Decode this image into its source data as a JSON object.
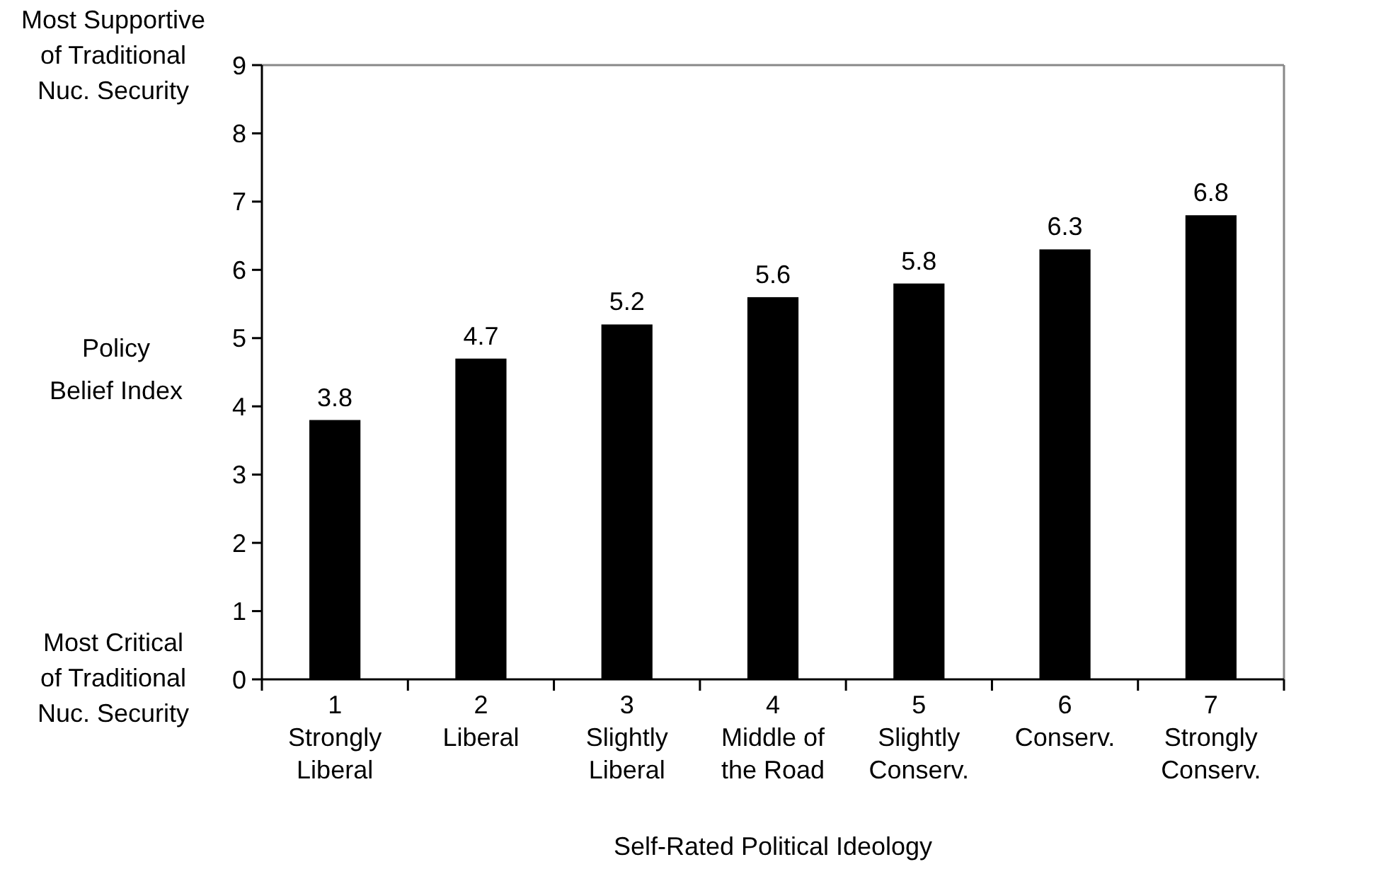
{
  "chart_data": {
    "type": "bar",
    "xlabel": "Self-Rated Political Ideology",
    "ylabel": "Policy\nBelief Index",
    "categories": [
      "1\nStrongly\nLiberal",
      "2\nLiberal",
      "3\nSlightly\nLiberal",
      "4\nMiddle of\nthe Road",
      "5\nSlightly\nConserv.",
      "6\nConserv.",
      "7\nStrongly\nConserv."
    ],
    "values": [
      3.8,
      4.7,
      5.2,
      5.6,
      5.8,
      6.3,
      6.8
    ],
    "color": "#000000",
    "data_labels": true,
    "ylim": [
      0,
      9
    ],
    "yticks": [
      0,
      1,
      2,
      3,
      4,
      5,
      6,
      7,
      8,
      9
    ],
    "grid": false,
    "annotations": [
      "Most Supportive\nof Traditional\nNuc. Security",
      "Most Critical\nof Traditional\nNuc. Security"
    ]
  }
}
